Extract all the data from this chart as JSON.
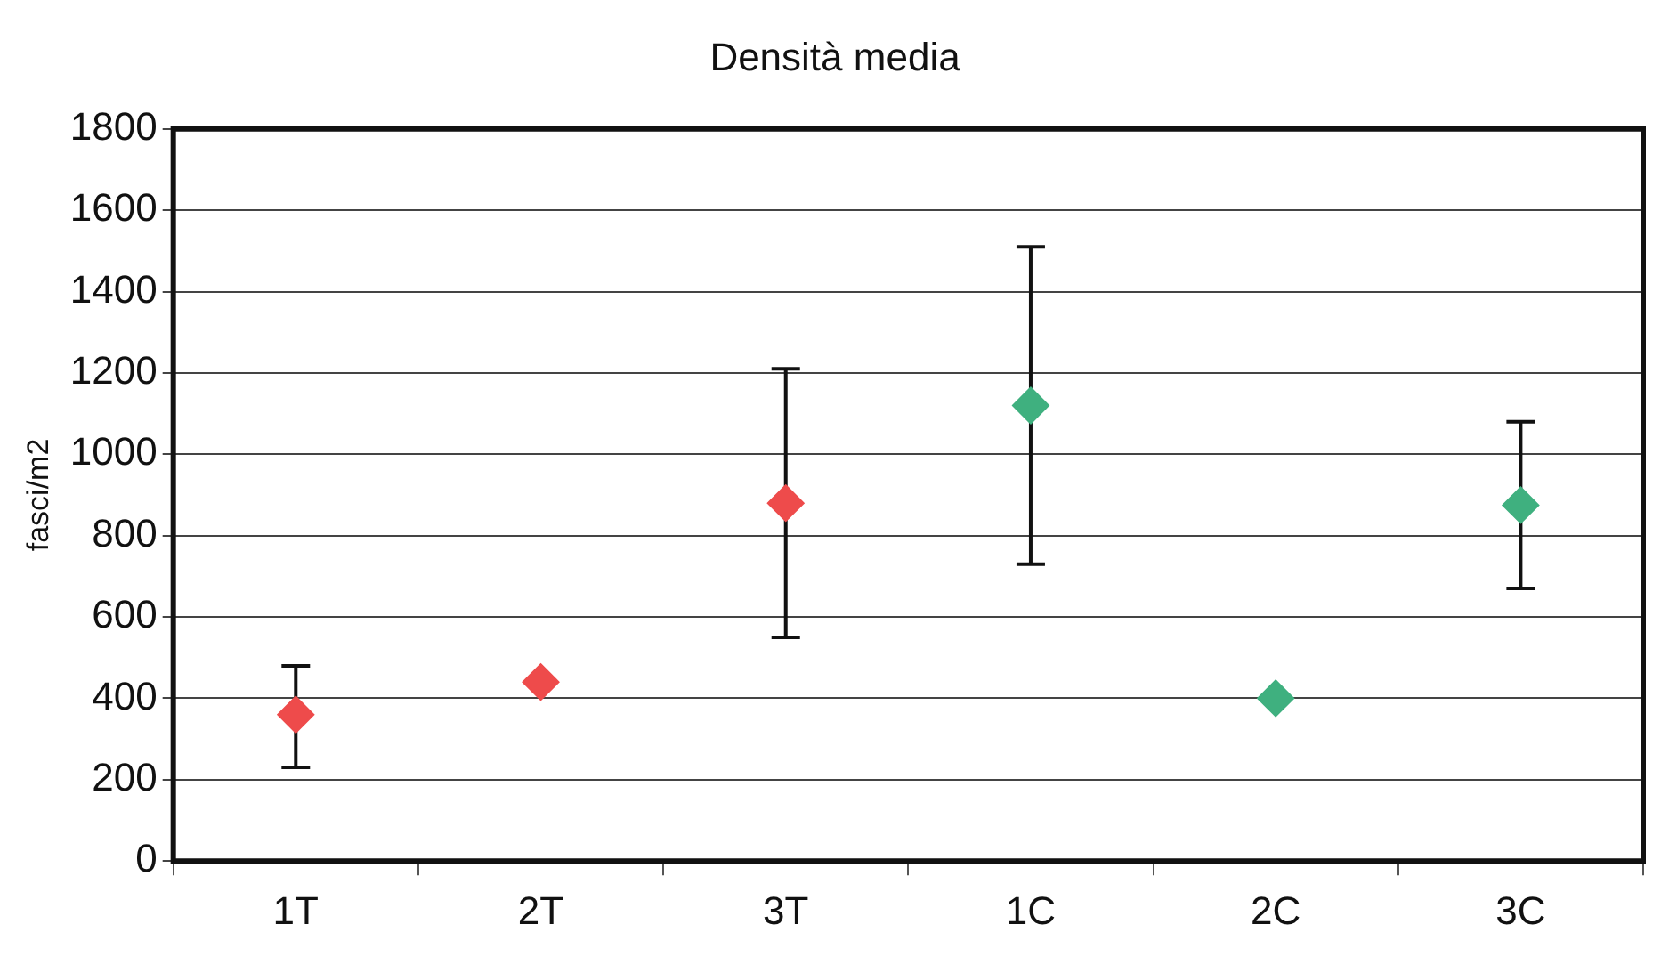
{
  "chart_data": {
    "type": "scatter",
    "title": "Densità media",
    "ylabel": "fasci/m2",
    "categories": [
      "1T",
      "2T",
      "3T",
      "1C",
      "2C",
      "3C"
    ],
    "values": [
      360,
      440,
      880,
      1120,
      400,
      875
    ],
    "colors": [
      "#ee4b4b",
      "#ee4b4b",
      "#ee4b4b",
      "#3fb07f",
      "#3fb07f",
      "#3fb07f"
    ],
    "errors": [
      [
        230,
        480
      ],
      null,
      [
        550,
        1210
      ],
      [
        730,
        1510
      ],
      null,
      [
        670,
        1080
      ]
    ],
    "ylim": [
      0,
      1800
    ],
    "yticks": [
      0,
      200,
      400,
      600,
      800,
      1000,
      1200,
      1400,
      1600,
      1800
    ],
    "grid": "y",
    "marker": "diamond",
    "legend": false
  }
}
